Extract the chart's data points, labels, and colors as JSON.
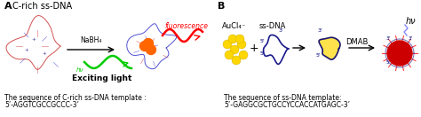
{
  "panel_A_label": "A",
  "panel_B_label": "B",
  "panel_A_title": "C-rich ss-DNA",
  "panel_A_text1": "The sequence of C-rich ss-DNA template :",
  "panel_A_text2": "5’-AGGTCGCCGCCC-3’",
  "panel_B_text1": "The sequence of ss-DNA template:",
  "panel_B_text2": "5’-GAGGCGCTGCCYCCACCATGAGC-3’",
  "nabh4_label": "NaBH₄",
  "fluorescence_label": "fluorescence",
  "exciting_label": "Exciting light",
  "aucl4_label": "AuCl₄⁻",
  "ssdna_label": "ss-DNA",
  "dmab_label": "DMAB",
  "hv_label": "hν",
  "hv_label2": "hν",
  "bg_color": "#ffffff",
  "text_color": "#000000",
  "arrow_color": "#000000",
  "red_color": "#ff0000",
  "green_color": "#00cc00",
  "orange_color": "#ff6600",
  "yellow_color": "#FFD700",
  "blue_dark": "#000080",
  "crimson": "#cc0000"
}
